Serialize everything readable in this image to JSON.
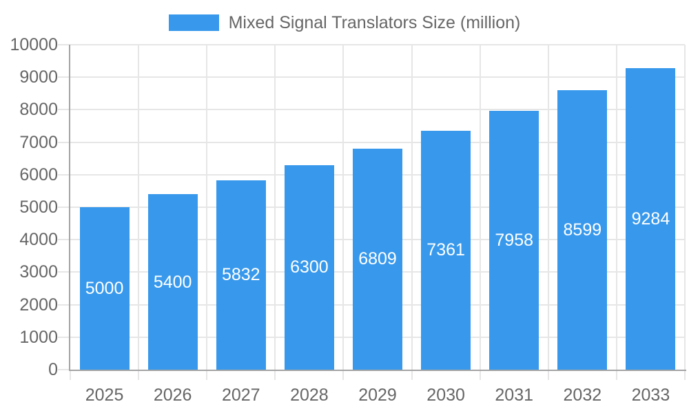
{
  "legend": {
    "label": "Mixed Signal Translators Size (million)",
    "position": "top"
  },
  "chart_data": {
    "type": "bar",
    "title": "Mixed Signal Translators Size (million)",
    "categories": [
      "2025",
      "2026",
      "2027",
      "2028",
      "2029",
      "2030",
      "2031",
      "2032",
      "2033"
    ],
    "values": [
      5000,
      5400,
      5832,
      6300,
      6809,
      7361,
      7958,
      8599,
      9284
    ],
    "series_name": "Mixed Signal Translators Size (million)",
    "xlabel": "",
    "ylabel": "",
    "ylim": [
      0,
      10000
    ],
    "y_ticks": [
      0,
      1000,
      2000,
      3000,
      4000,
      5000,
      6000,
      7000,
      8000,
      9000,
      10000
    ],
    "grid": true,
    "legend_position": "top",
    "bar_value_labels": true
  },
  "colors": {
    "bar": "#3899ec",
    "bar_label_text": "#ffffff",
    "axis_text": "#666666",
    "legend_text": "#666666",
    "grid_line": "#e6e6e6",
    "axis_line": "#a3a3a3",
    "background": "#ffffff"
  }
}
